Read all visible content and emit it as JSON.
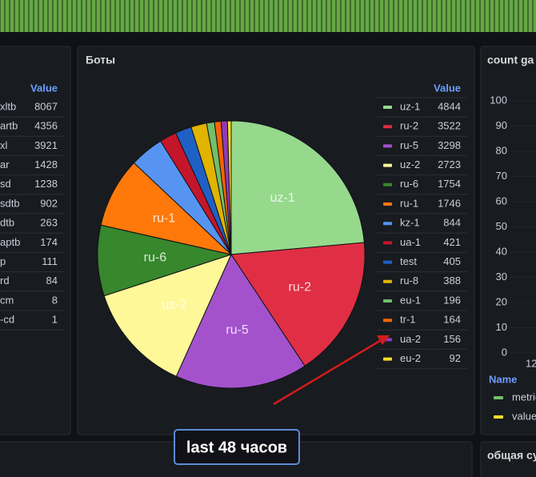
{
  "left_panel": {
    "value_header": "Value",
    "rows": [
      {
        "name": "xltb",
        "value": 8067
      },
      {
        "name": "artb",
        "value": 4356
      },
      {
        "name": "xl",
        "value": 3921
      },
      {
        "name": "ar",
        "value": 1428
      },
      {
        "name": "sd",
        "value": 1238
      },
      {
        "name": "sdtb",
        "value": 902
      },
      {
        "name": "dtb",
        "value": 263
      },
      {
        "name": "aptb",
        "value": 174
      },
      {
        "name": "p",
        "value": 111
      },
      {
        "name": "rd",
        "value": 84
      },
      {
        "name": "cm",
        "value": 8
      },
      {
        "name": "-cd",
        "value": 1
      }
    ]
  },
  "pie_panel": {
    "title": "Боты",
    "value_header": "Value",
    "chart_data": {
      "type": "pie",
      "categories": [
        "uz-1",
        "ru-2",
        "ru-5",
        "uz-2",
        "ru-6",
        "ru-1",
        "kz-1",
        "ua-1",
        "test",
        "ru-8",
        "eu-1",
        "tr-1",
        "ua-2",
        "eu-2"
      ],
      "values": [
        4844,
        3522,
        3298,
        2723,
        1754,
        1746,
        844,
        421,
        405,
        388,
        196,
        164,
        156,
        92
      ],
      "colors": [
        "#96d98d",
        "#e02f44",
        "#a352cc",
        "#fff899",
        "#37872d",
        "#ff780a",
        "#5794f2",
        "#c4162a",
        "#1f60c4",
        "#e0b400",
        "#73bf69",
        "#fa6400",
        "#8f3bb8",
        "#fade2a"
      ]
    }
  },
  "right_panel": {
    "title": "count ga",
    "legend_header": "Name",
    "chart_data": {
      "type": "line",
      "ylim": [
        0,
        100
      ],
      "yticks": [
        0,
        10,
        20,
        30,
        40,
        50,
        60,
        70,
        80,
        90,
        100
      ],
      "x_tick": "12",
      "series": [
        {
          "name": "metric",
          "color": "#73bf69"
        },
        {
          "name": "value",
          "color": "#fade2a"
        }
      ]
    }
  },
  "bottom_right_title": "общая су",
  "annotation": "last 48 часов"
}
